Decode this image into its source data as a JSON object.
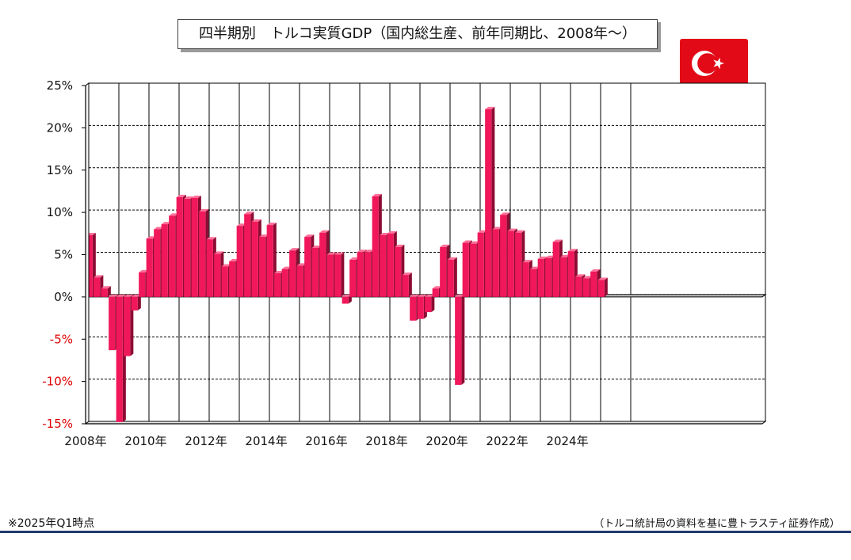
{
  "page": {
    "title": "四半期別　トルコ実質GDP（国内総生産、前年同期比、2008年～）",
    "footnote": "※2025年Q1時点",
    "source": "（トルコ統計局の資料を基に豊トラスティ証券作成）"
  },
  "flag_icon": "turkey-flag-icon",
  "colors": {
    "bar": "#f0185a",
    "bar_side": "#8c0c33",
    "bar_top": "#ff6f98",
    "negative_label": "#e00000",
    "grid": "#000000",
    "rule": "#1f3a6e",
    "flag": "#e30a17"
  },
  "chart_data": {
    "type": "bar",
    "title": "四半期別　トルコ実質GDP（国内総生産、前年同期比、2008年～）",
    "xlabel": "",
    "ylabel": "",
    "ylim": [
      -15,
      25
    ],
    "yticks": [
      {
        "value": 25,
        "label": "25%"
      },
      {
        "value": 20,
        "label": "20%"
      },
      {
        "value": 15,
        "label": "15%"
      },
      {
        "value": 10,
        "label": "10%"
      },
      {
        "value": 5,
        "label": "5%"
      },
      {
        "value": 0,
        "label": "0%"
      },
      {
        "value": -5,
        "label": "-5%"
      },
      {
        "value": -10,
        "label": "-10%"
      },
      {
        "value": -15,
        "label": "-15%"
      }
    ],
    "xticks": [
      "2008年",
      "2010年",
      "2012年",
      "2014年",
      "2016年",
      "2018年",
      "2020年",
      "2022年",
      "2024年"
    ],
    "grid": true,
    "categories": [
      "2008Q1",
      "2008Q2",
      "2008Q3",
      "2008Q4",
      "2009Q1",
      "2009Q2",
      "2009Q3",
      "2009Q4",
      "2010Q1",
      "2010Q2",
      "2010Q3",
      "2010Q4",
      "2011Q1",
      "2011Q2",
      "2011Q3",
      "2011Q4",
      "2012Q1",
      "2012Q2",
      "2012Q3",
      "2012Q4",
      "2013Q1",
      "2013Q2",
      "2013Q3",
      "2013Q4",
      "2014Q1",
      "2014Q2",
      "2014Q3",
      "2014Q4",
      "2015Q1",
      "2015Q2",
      "2015Q3",
      "2015Q4",
      "2016Q1",
      "2016Q2",
      "2016Q3",
      "2016Q4",
      "2017Q1",
      "2017Q2",
      "2017Q3",
      "2017Q4",
      "2018Q1",
      "2018Q2",
      "2018Q3",
      "2018Q4",
      "2019Q1",
      "2019Q2",
      "2019Q3",
      "2019Q4",
      "2020Q1",
      "2020Q2",
      "2020Q3",
      "2020Q4",
      "2021Q1",
      "2021Q2",
      "2021Q3",
      "2021Q4",
      "2022Q1",
      "2022Q2",
      "2022Q3",
      "2022Q4",
      "2023Q1",
      "2023Q2",
      "2023Q3",
      "2023Q4",
      "2024Q1",
      "2024Q2",
      "2024Q3",
      "2024Q4",
      "2025Q1"
    ],
    "values": [
      7.3,
      2.3,
      1.0,
      -6.3,
      -14.8,
      -7.0,
      -1.6,
      2.9,
      6.9,
      8.0,
      8.6,
      9.6,
      11.8,
      11.6,
      11.7,
      10.1,
      6.8,
      5.1,
      3.6,
      4.2,
      8.4,
      9.8,
      8.9,
      7.1,
      8.5,
      2.8,
      3.3,
      5.5,
      3.7,
      7.1,
      5.8,
      7.6,
      5.0,
      5.0,
      -0.8,
      4.4,
      5.3,
      5.3,
      11.9,
      7.3,
      7.5,
      5.9,
      2.6,
      -2.8,
      -2.6,
      -1.8,
      1.0,
      5.9,
      4.4,
      -10.4,
      6.4,
      6.3,
      7.6,
      22.2,
      8.0,
      9.7,
      7.8,
      7.6,
      4.1,
      3.3,
      4.5,
      4.6,
      6.5,
      4.7,
      5.4,
      2.4,
      2.2,
      3.0,
      2.0
    ]
  }
}
